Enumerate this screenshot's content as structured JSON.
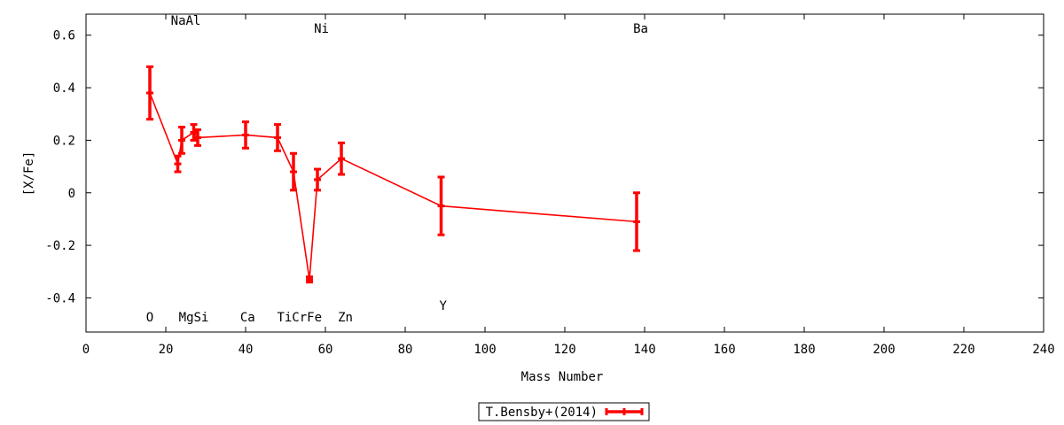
{
  "chart_data": {
    "type": "line",
    "xlabel": "Mass Number",
    "ylabel": "[X/Fe]",
    "xlim": [
      0,
      240
    ],
    "ylim": [
      -0.53,
      0.68
    ],
    "xticks": [
      0,
      20,
      40,
      60,
      80,
      100,
      120,
      140,
      160,
      180,
      200,
      220,
      240
    ],
    "yticks": [
      -0.4,
      -0.2,
      0,
      0.2,
      0.4,
      0.6
    ],
    "ytick_labels": [
      "-0.4",
      "-0.2",
      "0",
      "0.2",
      "0.4",
      "0.6"
    ],
    "legend_position": "bottom-center",
    "series": [
      {
        "name": "T.Bensby+(2014)",
        "color": "#ff0000",
        "points": [
          {
            "x": 16,
            "y": 0.38,
            "err": 0.1
          },
          {
            "x": 23,
            "y": 0.11,
            "err": 0.03
          },
          {
            "x": 24,
            "y": 0.2,
            "err": 0.05
          },
          {
            "x": 27,
            "y": 0.23,
            "err": 0.03
          },
          {
            "x": 28,
            "y": 0.21,
            "err": 0.03
          },
          {
            "x": 40,
            "y": 0.22,
            "err": 0.05
          },
          {
            "x": 48,
            "y": 0.21,
            "err": 0.05
          },
          {
            "x": 52,
            "y": 0.08,
            "err": 0.07
          },
          {
            "x": 56,
            "y": -0.33,
            "err": 0.01
          },
          {
            "x": 58,
            "y": 0.05,
            "err": 0.04
          },
          {
            "x": 64,
            "y": 0.13,
            "err": 0.06
          },
          {
            "x": 89,
            "y": -0.05,
            "err": 0.11
          },
          {
            "x": 138,
            "y": -0.11,
            "err": 0.11
          }
        ]
      }
    ],
    "element_labels": [
      {
        "text": "O",
        "x": 16,
        "y": -0.49
      },
      {
        "text": "NaAl",
        "x": 25,
        "y": 0.64
      },
      {
        "text": "MgSi",
        "x": 27,
        "y": -0.49
      },
      {
        "text": "Ca",
        "x": 40.5,
        "y": -0.49
      },
      {
        "text": "TiCrFe",
        "x": 53.5,
        "y": -0.49
      },
      {
        "text": "Ni",
        "x": 59,
        "y": 0.61
      },
      {
        "text": "Zn",
        "x": 65,
        "y": -0.49
      },
      {
        "text": "Y",
        "x": 89.5,
        "y": -0.445
      },
      {
        "text": "Ba",
        "x": 139,
        "y": 0.61
      }
    ]
  }
}
